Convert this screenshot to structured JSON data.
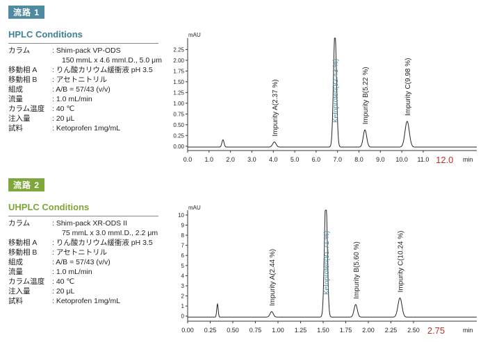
{
  "sections": [
    {
      "badge": "流路 1",
      "title": "HPLC Conditions",
      "conditions": [
        {
          "label": "カラム",
          "value": ": Shim-pack VP-ODS"
        },
        {
          "label": "",
          "value": "150 mmL x 4.6 mmI.D., 5.0 μm"
        },
        {
          "label": "移動相 A",
          "value": ": りん酸カリウム緩衝液 pH 3.5"
        },
        {
          "label": "移動相 B",
          "value": ": アセトニトリル"
        },
        {
          "label": "組成",
          "value": ": A/B = 57/43 (v/v)"
        },
        {
          "label": "流量",
          "value": ": 1.0 mL/min"
        },
        {
          "label": "カラム温度",
          "value": ": 40 ℃"
        },
        {
          "label": "注入量",
          "value": ": 20 μL"
        },
        {
          "label": "試料",
          "value": ": Ketoprofen 1mg/mL"
        }
      ]
    },
    {
      "badge": "流路 2",
      "title": "UHPLC Conditions",
      "conditions": [
        {
          "label": "カラム",
          "value": ": Shim-pack XR-ODS II"
        },
        {
          "label": "",
          "value": "75 mmL x 3.0 mmI.D., 2.2 μm"
        },
        {
          "label": "移動相 A",
          "value": ": りん酸カリウム緩衝液 pH 3.5"
        },
        {
          "label": "移動相 B",
          "value": ": アセトニトリル"
        },
        {
          "label": "組成",
          "value": ": A/B = 57/43 (v/v)"
        },
        {
          "label": "流量",
          "value": ": 1.0 mL/min"
        },
        {
          "label": "カラム温度",
          "value": ": 40 ℃"
        },
        {
          "label": "注入量",
          "value": ": 20 μL"
        },
        {
          "label": "試料",
          "value": ": Ketoprofen 1mg/mL"
        }
      ]
    }
  ],
  "chart_data": [
    {
      "type": "line",
      "ylabel": "mAU",
      "xlabel": "min",
      "xlim": [
        0,
        13.5
      ],
      "ylim": [
        -0.1,
        2.45
      ],
      "x_ticks": [
        "0.0",
        "1.0",
        "2.0",
        "3.0",
        "4.0",
        "5.0",
        "6.0",
        "7.0",
        "8.0",
        "9.0",
        "10.0",
        "11.0"
      ],
      "x_tick_values": [
        0,
        1,
        2,
        3,
        4,
        5,
        6,
        7,
        8,
        9,
        10,
        11
      ],
      "end_time_label": "12.0",
      "end_time_value": 12.0,
      "y_ticks": [
        "0.00",
        "0.25",
        "0.50",
        "0.75",
        "1.00",
        "1.25",
        "1.50",
        "1.75",
        "2.00",
        "2.25"
      ],
      "y_tick_values": [
        0,
        0.25,
        0.5,
        0.75,
        1.0,
        1.25,
        1.5,
        1.75,
        2.0,
        2.25
      ],
      "baseline": -0.02,
      "peaks": [
        {
          "rt": 1.65,
          "height": 0.17,
          "width": 0.05,
          "label": ""
        },
        {
          "rt": 4.05,
          "height": 0.12,
          "width": 0.08,
          "label": "Impurity A(2.37 %)"
        },
        {
          "rt": 6.88,
          "height": 2.7,
          "width": 0.07,
          "label": "Ketoprofen(82.43 %)",
          "main": true
        },
        {
          "rt": 8.28,
          "height": 0.4,
          "width": 0.08,
          "label": "Impurity B(5.22 %)"
        },
        {
          "rt": 10.25,
          "height": 0.6,
          "width": 0.1,
          "label": "Impurity C(9.98 %)"
        }
      ],
      "label_colors": {
        "main": "#4f8aa0",
        "other": "#222222",
        "end_time": "#c0302b"
      }
    },
    {
      "type": "line",
      "ylabel": "mAU",
      "xlabel": "min",
      "xlim": [
        0,
        3.2
      ],
      "ylim": [
        -0.5,
        10.2
      ],
      "x_ticks": [
        "0.00",
        "0.25",
        "0.50",
        "0.75",
        "1.00",
        "1.25",
        "1.50",
        "1.75",
        "2.00",
        "2.25",
        "2.50"
      ],
      "x_tick_values": [
        0,
        0.25,
        0.5,
        0.75,
        1.0,
        1.25,
        1.5,
        1.75,
        2.0,
        2.25,
        2.5
      ],
      "end_time_label": "2.75",
      "end_time_value": 2.75,
      "y_ticks": [
        "0",
        "1",
        "2",
        "3",
        "4",
        "5",
        "6",
        "7",
        "8",
        "9",
        "10"
      ],
      "y_tick_values": [
        0,
        1,
        2,
        3,
        4,
        5,
        6,
        7,
        8,
        9,
        10
      ],
      "baseline": -0.1,
      "peaks": [
        {
          "rt": 0.33,
          "height": 1.3,
          "width": 0.008,
          "label": ""
        },
        {
          "rt": 0.93,
          "height": 0.55,
          "width": 0.018,
          "label": "Impurity A(2.44 %)"
        },
        {
          "rt": 1.53,
          "height": 12.0,
          "width": 0.016,
          "label": "Ketoprofen(81.71 %)",
          "main": true
        },
        {
          "rt": 1.86,
          "height": 1.25,
          "width": 0.018,
          "label": "Impurity B(5.60 %)"
        },
        {
          "rt": 2.35,
          "height": 1.9,
          "width": 0.022,
          "label": "Impurity C(10.24 %)"
        }
      ],
      "label_colors": {
        "main": "#4f8aa0",
        "other": "#222222",
        "end_time": "#c0302b"
      }
    }
  ]
}
